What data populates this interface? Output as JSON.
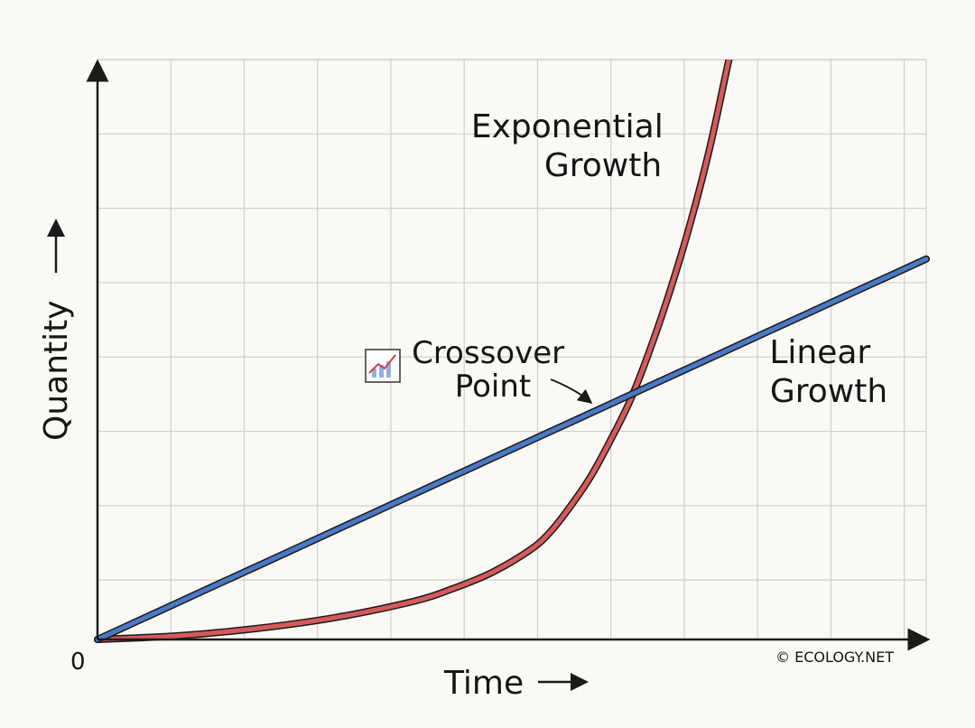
{
  "chart_data": {
    "type": "line",
    "title": "",
    "xlabel": "Time",
    "ylabel": "Quantity",
    "origin_label": "0",
    "x_ticks_shown": false,
    "y_ticks_shown": false,
    "grid": true,
    "series": [
      {
        "name": "Linear Growth",
        "color": "#4a78c4",
        "x": [
          0,
          1,
          2,
          3,
          4,
          5,
          6,
          7,
          8,
          9,
          10,
          11,
          12,
          13,
          14,
          15,
          16,
          17,
          18,
          19,
          20,
          21
        ],
        "y": [
          0,
          0.5,
          1.0,
          1.5,
          2.0,
          2.5,
          3.0,
          3.5,
          4.0,
          4.5,
          5.0,
          5.5,
          6.0,
          6.5,
          7.0,
          7.5,
          8.0,
          8.5,
          9.0,
          9.5,
          10.0,
          10.5
        ]
      },
      {
        "name": "Exponential Growth",
        "color": "#d65a5a",
        "x": [
          0,
          2,
          4,
          6,
          8,
          9,
          10,
          11,
          11.5,
          12,
          12.5,
          13,
          13.5,
          14,
          14.5,
          15,
          15.5,
          16,
          16.6
        ],
        "y": [
          0,
          0.1,
          0.3,
          0.6,
          1.05,
          1.4,
          1.85,
          2.5,
          3.0,
          3.7,
          4.5,
          5.5,
          6.6,
          8.0,
          9.6,
          11.4,
          13.5,
          16.0,
          19.0
        ]
      }
    ],
    "annotations": [
      {
        "name": "crossover",
        "text_lines": [
          "Crossover",
          "Point"
        ],
        "x": 13.6,
        "y": 6.8
      }
    ],
    "series_labels": {
      "exponential": [
        "Exponential",
        "Growth"
      ],
      "linear": [
        "Linear",
        "Growth"
      ]
    },
    "watermark": "© ECOLOGY.NET",
    "colors": {
      "grid": "#cfcfcf",
      "axis": "#1a1a1a",
      "text": "#151515"
    }
  }
}
